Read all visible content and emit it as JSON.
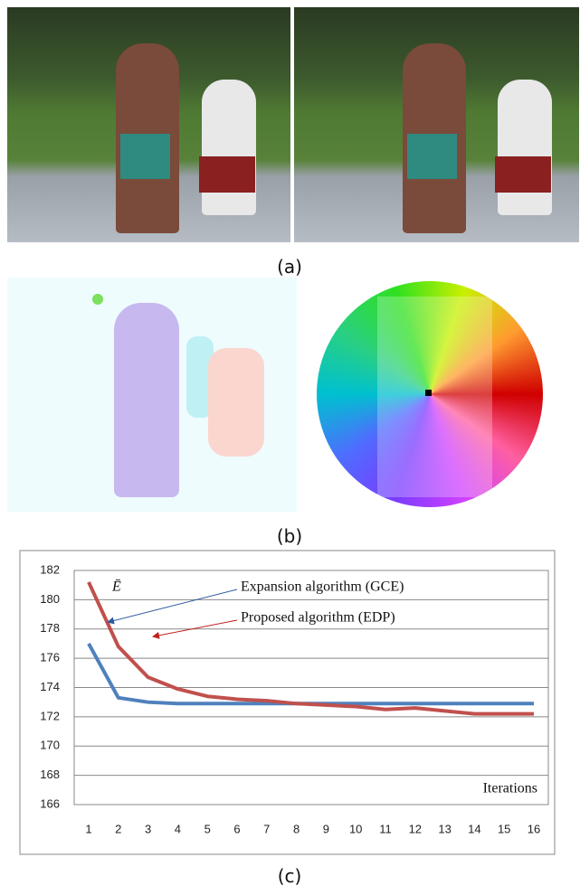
{
  "labels": [
    "(a)",
    "(b)",
    "(c)"
  ],
  "chart_data": {
    "type": "line",
    "y_label": "Ē",
    "x_label": "Iterations",
    "x": [
      1,
      2,
      3,
      4,
      5,
      6,
      7,
      8,
      9,
      10,
      11,
      12,
      13,
      14,
      15,
      16
    ],
    "xlim": [
      1,
      16
    ],
    "xticks": [
      1,
      2,
      3,
      4,
      5,
      6,
      7,
      8,
      9,
      10,
      11,
      12,
      13,
      14,
      15,
      16
    ],
    "ylim": [
      166,
      182
    ],
    "yticks": [
      166,
      168,
      170,
      172,
      174,
      176,
      178,
      180,
      182
    ],
    "grid": true,
    "series": [
      {
        "name": "Expansion algorithm (GCE)",
        "color": "#4f81bd",
        "values": [
          177.0,
          173.3,
          173.0,
          172.9,
          172.9,
          172.9,
          172.9,
          172.9,
          172.9,
          172.9,
          172.9,
          172.9,
          172.9,
          172.9,
          172.9,
          172.9
        ]
      },
      {
        "name": "Proposed algorithm (EDP)",
        "color": "#c0504d",
        "values": [
          181.2,
          176.8,
          174.7,
          173.9,
          173.4,
          173.2,
          173.1,
          172.9,
          172.8,
          172.7,
          172.5,
          172.6,
          172.4,
          172.2,
          172.2,
          172.2
        ]
      }
    ]
  }
}
